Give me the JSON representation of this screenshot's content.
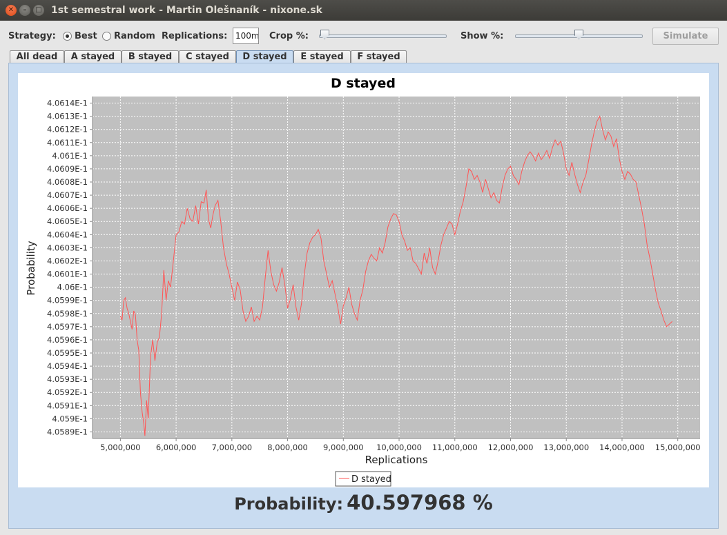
{
  "window": {
    "title": "1st semestral work - Martin Olešnaník - nixone.sk",
    "close_glyph": "✕",
    "min_glyph": "–",
    "max_glyph": "□"
  },
  "toolbar": {
    "strategy_label": "Strategy:",
    "strategy_options": [
      {
        "label": "Best",
        "selected": true
      },
      {
        "label": "Random",
        "selected": false
      }
    ],
    "replications_label": "Replications:",
    "replications_value": "100m",
    "crop_label": "Crop %:",
    "crop_value": 1,
    "show_label": "Show %:",
    "show_value": 50,
    "simulate_label": "Simulate",
    "simulate_enabled": false
  },
  "tabs": [
    {
      "label": "All dead",
      "active": false
    },
    {
      "label": "A stayed",
      "active": false
    },
    {
      "label": "B stayed",
      "active": false
    },
    {
      "label": "C stayed",
      "active": false
    },
    {
      "label": "D stayed",
      "active": true
    },
    {
      "label": "E stayed",
      "active": false
    },
    {
      "label": "F stayed",
      "active": false
    }
  ],
  "result": {
    "label": "Probability:",
    "value": "40.597968 %"
  },
  "colors": {
    "series": "#ff5555",
    "plot_bg": "#c0c0c0",
    "panel_bg": "#c9dcf1",
    "grid": "#ffffff"
  },
  "chart_data": {
    "type": "line",
    "title": "D stayed",
    "xlabel": "Replications",
    "ylabel": "Probability",
    "xlim": [
      4500000,
      15400000
    ],
    "ylim": [
      0.405885,
      0.406145
    ],
    "x_ticks": [
      5000000,
      6000000,
      7000000,
      8000000,
      9000000,
      10000000,
      11000000,
      12000000,
      13000000,
      14000000,
      15000000
    ],
    "x_tick_labels": [
      "5,000,000",
      "6,000,000",
      "7,000,000",
      "8,000,000",
      "9,000,000",
      "10,000,000",
      "11,000,000",
      "12,000,000",
      "13,000,000",
      "14,000,000",
      "15,000,000"
    ],
    "y_ticks": [
      0.40589,
      0.4059,
      0.40591,
      0.40592,
      0.40593,
      0.40594,
      0.40595,
      0.40596,
      0.40597,
      0.40598,
      0.40599,
      0.406,
      0.40601,
      0.40602,
      0.40603,
      0.40604,
      0.40605,
      0.40606,
      0.40607,
      0.40608,
      0.40609,
      0.4061,
      0.40611,
      0.40612,
      0.40613,
      0.40614
    ],
    "y_tick_labels": [
      "4.0589E-1",
      "4.059E-1",
      "4.0591E-1",
      "4.0592E-1",
      "4.0593E-1",
      "4.0594E-1",
      "4.0595E-1",
      "4.0596E-1",
      "4.0597E-1",
      "4.0598E-1",
      "4.0599E-1",
      "4.06E-1",
      "4.0601E-1",
      "4.0602E-1",
      "4.0603E-1",
      "4.0604E-1",
      "4.0605E-1",
      "4.0606E-1",
      "4.0607E-1",
      "4.0608E-1",
      "4.0609E-1",
      "4.061E-1",
      "4.0611E-1",
      "4.0612E-1",
      "4.0613E-1",
      "4.0614E-1"
    ],
    "grid": true,
    "legend": "bottom-center",
    "series": [
      {
        "name": "D stayed",
        "x": [
          5000000,
          5030000,
          5060000,
          5090000,
          5120000,
          5150000,
          5180000,
          5210000,
          5240000,
          5270000,
          5300000,
          5330000,
          5360000,
          5390000,
          5420000,
          5440000,
          5470000,
          5500000,
          5540000,
          5580000,
          5620000,
          5660000,
          5700000,
          5740000,
          5780000,
          5820000,
          5860000,
          5900000,
          5950000,
          6000000,
          6050000,
          6100000,
          6150000,
          6200000,
          6250000,
          6300000,
          6350000,
          6400000,
          6450000,
          6500000,
          6540000,
          6580000,
          6620000,
          6660000,
          6700000,
          6750000,
          6800000,
          6850000,
          6900000,
          6950000,
          7000000,
          7050000,
          7100000,
          7150000,
          7200000,
          7250000,
          7300000,
          7350000,
          7400000,
          7450000,
          7500000,
          7550000,
          7600000,
          7650000,
          7700000,
          7750000,
          7800000,
          7850000,
          7900000,
          7950000,
          8000000,
          8050000,
          8100000,
          8150000,
          8200000,
          8250000,
          8300000,
          8350000,
          8400000,
          8450000,
          8500000,
          8550000,
          8600000,
          8650000,
          8700000,
          8750000,
          8800000,
          8850000,
          8900000,
          8950000,
          9000000,
          9050000,
          9100000,
          9150000,
          9200000,
          9250000,
          9300000,
          9350000,
          9400000,
          9450000,
          9500000,
          9550000,
          9600000,
          9650000,
          9700000,
          9750000,
          9800000,
          9850000,
          9900000,
          9950000,
          10000000,
          10050000,
          10100000,
          10150000,
          10200000,
          10250000,
          10300000,
          10350000,
          10400000,
          10450000,
          10500000,
          10550000,
          10600000,
          10650000,
          10700000,
          10750000,
          10800000,
          10850000,
          10900000,
          10950000,
          11000000,
          11050000,
          11100000,
          11150000,
          11200000,
          11250000,
          11300000,
          11350000,
          11400000,
          11450000,
          11500000,
          11550000,
          11600000,
          11650000,
          11700000,
          11750000,
          11800000,
          11850000,
          11900000,
          11950000,
          12000000,
          12050000,
          12100000,
          12150000,
          12200000,
          12250000,
          12300000,
          12350000,
          12400000,
          12450000,
          12500000,
          12550000,
          12600000,
          12650000,
          12700000,
          12750000,
          12800000,
          12850000,
          12900000,
          12950000,
          13000000,
          13050000,
          13100000,
          13150000,
          13200000,
          13250000,
          13300000,
          13350000,
          13400000,
          13450000,
          13500000,
          13550000,
          13600000,
          13650000,
          13700000,
          13750000,
          13800000,
          13850000,
          13900000,
          13950000,
          14000000,
          14050000,
          14100000,
          14150000,
          14200000,
          14250000,
          14300000,
          14350000,
          14400000,
          14450000,
          14500000,
          14550000,
          14600000,
          14650000,
          14700000,
          14750000,
          14800000,
          14850000,
          14900000
        ],
        "y": [
          0.405978,
          0.405975,
          0.40599,
          0.405992,
          0.405984,
          0.40598,
          0.405974,
          0.405968,
          0.405982,
          0.405979,
          0.40596,
          0.405952,
          0.40592,
          0.405905,
          0.405896,
          0.405887,
          0.405914,
          0.4059,
          0.405947,
          0.40596,
          0.405944,
          0.405958,
          0.405962,
          0.40598,
          0.406013,
          0.40599,
          0.406005,
          0.406,
          0.40602,
          0.40604,
          0.406042,
          0.40605,
          0.406048,
          0.40606,
          0.406052,
          0.40605,
          0.406062,
          0.406048,
          0.406065,
          0.406064,
          0.406074,
          0.406052,
          0.406045,
          0.406055,
          0.406062,
          0.406066,
          0.40605,
          0.40603,
          0.406018,
          0.40601,
          0.406,
          0.40599,
          0.406004,
          0.405998,
          0.405982,
          0.405974,
          0.405978,
          0.405985,
          0.405974,
          0.405978,
          0.405975,
          0.405985,
          0.406008,
          0.406028,
          0.406012,
          0.406002,
          0.405997,
          0.406004,
          0.406015,
          0.406002,
          0.405984,
          0.405991,
          0.406002,
          0.405985,
          0.405975,
          0.405988,
          0.40601,
          0.406026,
          0.406034,
          0.406038,
          0.40604,
          0.406044,
          0.406037,
          0.40602,
          0.40601,
          0.406,
          0.406005,
          0.405995,
          0.405985,
          0.405972,
          0.405986,
          0.405992,
          0.406,
          0.405987,
          0.40598,
          0.405975,
          0.40599,
          0.405998,
          0.406012,
          0.40602,
          0.406025,
          0.406022,
          0.40602,
          0.40603,
          0.406026,
          0.406034,
          0.406046,
          0.406052,
          0.406056,
          0.406055,
          0.40605,
          0.40604,
          0.406035,
          0.406028,
          0.40603,
          0.40602,
          0.406018,
          0.406014,
          0.40601,
          0.406026,
          0.406018,
          0.40603,
          0.406015,
          0.40601,
          0.40602,
          0.406032,
          0.40604,
          0.406045,
          0.40605,
          0.406048,
          0.40604,
          0.406048,
          0.406058,
          0.406065,
          0.406076,
          0.40609,
          0.406088,
          0.406082,
          0.406085,
          0.40608,
          0.406072,
          0.406082,
          0.406075,
          0.406068,
          0.406072,
          0.406066,
          0.406064,
          0.406076,
          0.406085,
          0.40609,
          0.406092,
          0.406085,
          0.406082,
          0.406078,
          0.406088,
          0.406095,
          0.4061,
          0.406103,
          0.4061,
          0.406096,
          0.406102,
          0.406097,
          0.4061,
          0.406104,
          0.406098,
          0.406106,
          0.406112,
          0.406108,
          0.406111,
          0.406102,
          0.40609,
          0.406085,
          0.406095,
          0.406086,
          0.406078,
          0.406072,
          0.40608,
          0.406085,
          0.406096,
          0.406108,
          0.406118,
          0.406126,
          0.40613,
          0.40612,
          0.406112,
          0.406118,
          0.406115,
          0.406107,
          0.406113,
          0.406098,
          0.406088,
          0.406082,
          0.406088,
          0.406086,
          0.406082,
          0.40608,
          0.40607,
          0.40606,
          0.406048,
          0.406032,
          0.406022,
          0.40601,
          0.405998,
          0.405988,
          0.405982,
          0.405975,
          0.40597,
          0.405972,
          0.405974
        ]
      }
    ]
  }
}
